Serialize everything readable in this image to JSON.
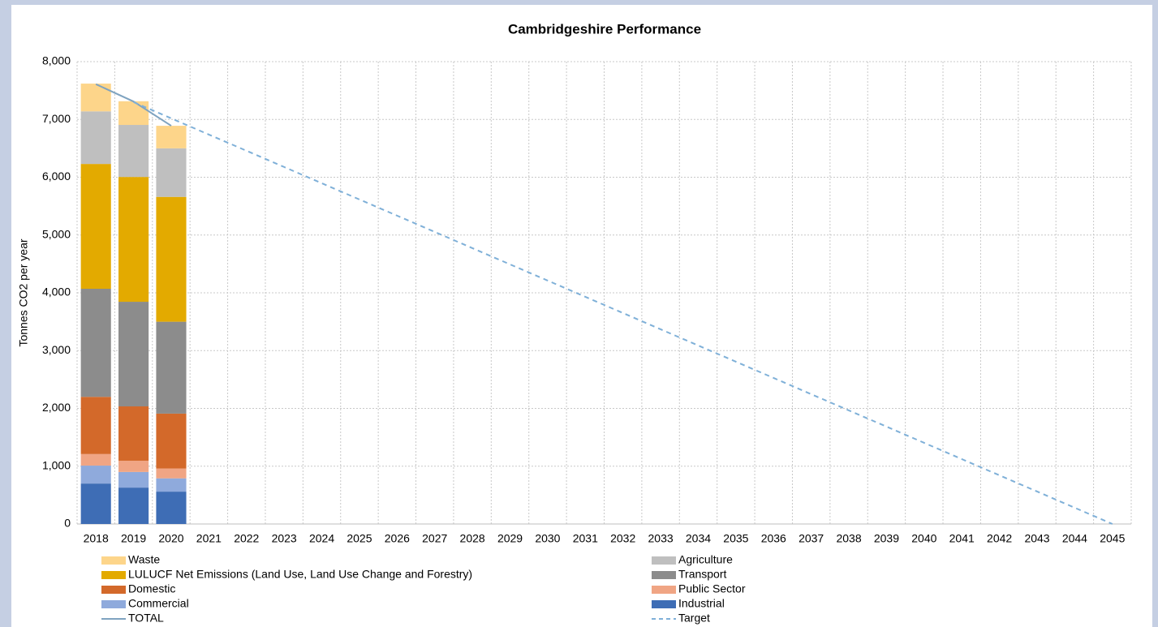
{
  "chart_data": {
    "type": "bar",
    "title": "Cambridgeshire Performance",
    "y_label": "Tonnes CO2 per year",
    "categories": [
      "2018",
      "2019",
      "2020",
      "2021",
      "2022",
      "2023",
      "2024",
      "2025",
      "2026",
      "2027",
      "2028",
      "2029",
      "2030",
      "2031",
      "2032",
      "2033",
      "2034",
      "2035",
      "2036",
      "2037",
      "2038",
      "2039",
      "2040",
      "2041",
      "2042",
      "2043",
      "2044",
      "2045"
    ],
    "stacked": true,
    "grid": true,
    "ylim": [
      0,
      8000
    ],
    "yticks": [
      0,
      {
        "value": 1000,
        "label": "1,000"
      },
      {
        "value": 2000,
        "label": "2,000"
      },
      {
        "value": 3000,
        "label": "3,000"
      },
      {
        "value": 4000,
        "label": "4,000"
      },
      {
        "value": 5000,
        "label": "5,000"
      },
      {
        "value": 6000,
        "label": "6,000"
      },
      {
        "value": 7000,
        "label": "7,000"
      },
      {
        "value": 8000,
        "label": "8,000"
      }
    ],
    "series": [
      {
        "name": "Industrial",
        "color": "#3e6db5",
        "values": [
          700,
          630,
          560,
          null,
          null,
          null,
          null,
          null,
          null,
          null,
          null,
          null,
          null,
          null,
          null,
          null,
          null,
          null,
          null,
          null,
          null,
          null,
          null,
          null,
          null,
          null,
          null,
          null
        ]
      },
      {
        "name": "Commercial",
        "color": "#8faadc",
        "values": [
          310,
          270,
          230,
          null,
          null,
          null,
          null,
          null,
          null,
          null,
          null,
          null,
          null,
          null,
          null,
          null,
          null,
          null,
          null,
          null,
          null,
          null,
          null,
          null,
          null,
          null,
          null,
          null
        ]
      },
      {
        "name": "Public Sector",
        "color": "#f0a584",
        "values": [
          200,
          195,
          170,
          null,
          null,
          null,
          null,
          null,
          null,
          null,
          null,
          null,
          null,
          null,
          null,
          null,
          null,
          null,
          null,
          null,
          null,
          null,
          null,
          null,
          null,
          null,
          null,
          null
        ]
      },
      {
        "name": "Domestic",
        "color": "#d3692a",
        "values": [
          990,
          940,
          950,
          null,
          null,
          null,
          null,
          null,
          null,
          null,
          null,
          null,
          null,
          null,
          null,
          null,
          null,
          null,
          null,
          null,
          null,
          null,
          null,
          null,
          null,
          null,
          null,
          null
        ]
      },
      {
        "name": "Transport",
        "color": "#8c8c8c",
        "values": [
          1870,
          1810,
          1590,
          null,
          null,
          null,
          null,
          null,
          null,
          null,
          null,
          null,
          null,
          null,
          null,
          null,
          null,
          null,
          null,
          null,
          null,
          null,
          null,
          null,
          null,
          null,
          null,
          null
        ]
      },
      {
        "name": "LULUCF Net Emissions (Land Use, Land Use Change and Forestry)",
        "color": "#e3aa00",
        "values": [
          2160,
          2160,
          2160,
          null,
          null,
          null,
          null,
          null,
          null,
          null,
          null,
          null,
          null,
          null,
          null,
          null,
          null,
          null,
          null,
          null,
          null,
          null,
          null,
          null,
          null,
          null,
          null,
          null
        ]
      },
      {
        "name": "Agriculture",
        "color": "#bfbfbf",
        "values": [
          910,
          900,
          840,
          null,
          null,
          null,
          null,
          null,
          null,
          null,
          null,
          null,
          null,
          null,
          null,
          null,
          null,
          null,
          null,
          null,
          null,
          null,
          null,
          null,
          null,
          null,
          null,
          null
        ]
      },
      {
        "name": "Waste",
        "color": "#fdd58a",
        "values": [
          480,
          410,
          390,
          null,
          null,
          null,
          null,
          null,
          null,
          null,
          null,
          null,
          null,
          null,
          null,
          null,
          null,
          null,
          null,
          null,
          null,
          null,
          null,
          null,
          null,
          null,
          null,
          null
        ]
      },
      {
        "name": "TOTAL",
        "type": "line",
        "color": "#7fa3c0",
        "values": [
          7610,
          7310,
          6890,
          null,
          null,
          null,
          null,
          null,
          null,
          null,
          null,
          null,
          null,
          null,
          null,
          null,
          null,
          null,
          null,
          null,
          null,
          null,
          null,
          null,
          null,
          null,
          null,
          null
        ]
      },
      {
        "name": "Target",
        "type": "line",
        "dashed": true,
        "color": "#7fb0d8",
        "values": [
          null,
          7300,
          7019,
          6738,
          6458,
          6177,
          5896,
          5615,
          5335,
          5054,
          4773,
          4492,
          4212,
          3931,
          3650,
          3369,
          3088,
          2808,
          2527,
          2246,
          1965,
          1685,
          1404,
          1123,
          842,
          562,
          281,
          0
        ]
      }
    ]
  }
}
